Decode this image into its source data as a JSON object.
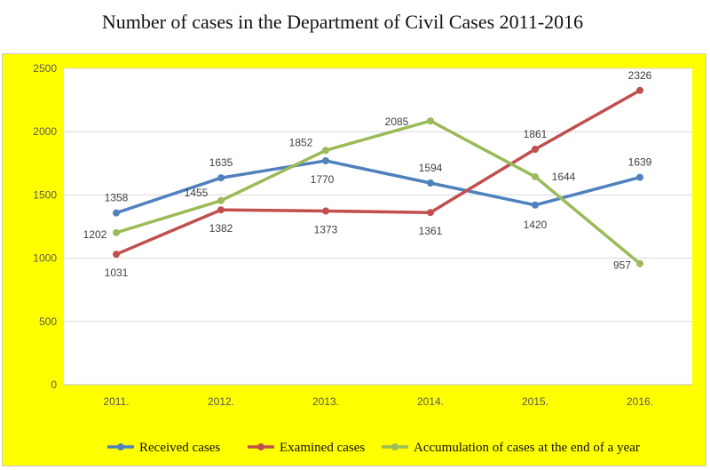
{
  "page": {
    "title": "Number of cases in the Department of Civil Cases 2011-2016"
  },
  "chart_data": {
    "type": "line",
    "title": "Number of cases in the Department of Civil Cases 2011-2016",
    "xlabel": "",
    "ylabel": "",
    "categories": [
      "2011.",
      "2012.",
      "2013.",
      "2014.",
      "2015.",
      "2016."
    ],
    "ylim": [
      0,
      2500
    ],
    "yticks": [
      0,
      500,
      1000,
      1500,
      2000,
      2500
    ],
    "grid": true,
    "legend_position": "bottom",
    "colors": {
      "background": "#ffff00",
      "plot_area": "#ffffff",
      "gridline": "#d9d9d9"
    },
    "series": [
      {
        "name": "Received cases",
        "color": "#4f81bd",
        "values": [
          1358,
          1635,
          1770,
          1594,
          1420,
          1639
        ]
      },
      {
        "name": "Examined cases",
        "color": "#c0504d",
        "values": [
          1031,
          1382,
          1373,
          1361,
          1861,
          2326
        ]
      },
      {
        "name": "Accumulation of cases at the end of a year",
        "color": "#9bbb59",
        "values": [
          1202,
          1455,
          1852,
          2085,
          1644,
          957
        ]
      }
    ]
  }
}
